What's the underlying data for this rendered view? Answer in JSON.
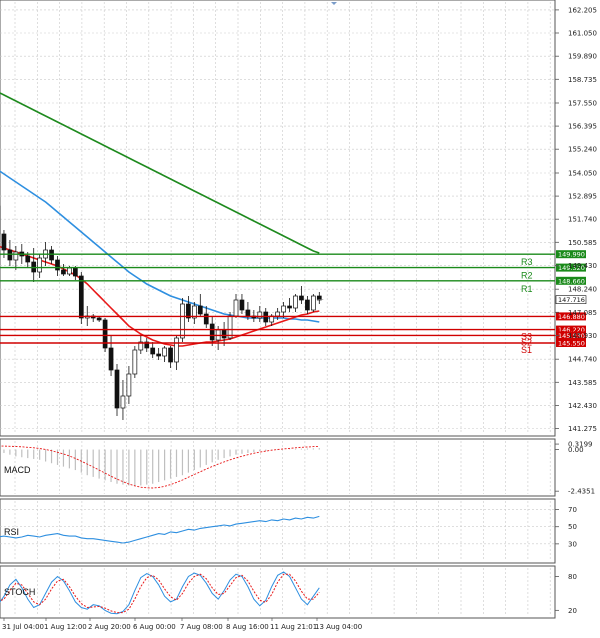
{
  "chart_data": [
    {
      "type": "candlestick",
      "panel": "price",
      "ylim": [
        141.0,
        162.6
      ],
      "y_ticks": [
        "162.205",
        "161.050",
        "159.890",
        "158.735",
        "157.550",
        "156.395",
        "155.240",
        "154.050",
        "152.895",
        "151.740",
        "150.585",
        "149.430",
        "148.240",
        "147.085",
        "145.930",
        "144.740",
        "143.585",
        "142.430",
        "141.275"
      ],
      "y_tick_values": [
        162.205,
        161.05,
        159.89,
        158.735,
        157.55,
        156.395,
        155.24,
        154.05,
        152.895,
        151.74,
        150.585,
        149.43,
        148.24,
        147.085,
        145.93,
        144.74,
        143.585,
        142.43,
        141.275
      ],
      "x_ticks": [
        "31 Jul 04:00",
        "1 Aug 12:00",
        "2 Aug 20:00",
        "6 Aug 00:00",
        "7 Aug 08:00",
        "8 Aug 16:00",
        "11 Aug 21:01",
        "13 Aug 04:00"
      ],
      "candles": [
        [
          152.4,
          152.8,
          150.6,
          151.0
        ],
        [
          151.0,
          151.2,
          149.8,
          150.2
        ],
        [
          150.2,
          150.7,
          149.4,
          149.7
        ],
        [
          149.7,
          150.4,
          149.2,
          150.1
        ],
        [
          150.1,
          150.5,
          149.5,
          149.9
        ],
        [
          149.9,
          150.1,
          149.3,
          149.6
        ],
        [
          149.6,
          150.3,
          148.6,
          149.1
        ],
        [
          149.1,
          150.0,
          148.8,
          149.8
        ],
        [
          149.8,
          150.6,
          149.4,
          150.2
        ],
        [
          150.2,
          150.4,
          149.5,
          149.7
        ],
        [
          149.7,
          149.9,
          148.9,
          149.2
        ],
        [
          149.2,
          149.5,
          148.9,
          149.0
        ],
        [
          149.0,
          149.4,
          148.9,
          149.3
        ],
        [
          149.3,
          149.4,
          148.7,
          148.9
        ],
        [
          148.9,
          149.1,
          146.5,
          146.8
        ],
        [
          146.8,
          147.4,
          146.4,
          146.9
        ],
        [
          146.9,
          147.0,
          146.6,
          146.8
        ],
        [
          146.8,
          146.9,
          146.6,
          146.7
        ],
        [
          146.7,
          146.8,
          145.1,
          145.3
        ],
        [
          145.3,
          145.9,
          143.9,
          144.2
        ],
        [
          144.2,
          144.5,
          141.9,
          142.3
        ],
        [
          142.3,
          143.7,
          141.7,
          142.9
        ],
        [
          142.9,
          144.4,
          142.5,
          144.0
        ],
        [
          144.0,
          145.4,
          143.8,
          145.2
        ],
        [
          145.2,
          145.9,
          145.0,
          145.6
        ],
        [
          145.6,
          145.8,
          145.1,
          145.3
        ],
        [
          145.3,
          145.6,
          144.8,
          145.0
        ],
        [
          145.0,
          145.3,
          144.7,
          144.9
        ],
        [
          144.9,
          145.4,
          144.6,
          145.3
        ],
        [
          145.3,
          145.4,
          144.3,
          144.6
        ],
        [
          144.6,
          145.9,
          144.2,
          145.8
        ],
        [
          145.8,
          147.8,
          145.6,
          147.5
        ],
        [
          147.5,
          147.9,
          146.6,
          146.8
        ],
        [
          146.8,
          147.6,
          146.5,
          147.4
        ],
        [
          147.4,
          148.0,
          146.9,
          147.0
        ],
        [
          147.0,
          147.4,
          146.3,
          146.5
        ],
        [
          146.5,
          146.9,
          145.4,
          145.7
        ],
        [
          145.7,
          146.4,
          145.2,
          146.2
        ],
        [
          146.2,
          146.6,
          145.4,
          145.8
        ],
        [
          145.8,
          147.1,
          145.7,
          146.9
        ],
        [
          146.9,
          148.0,
          146.8,
          147.7
        ],
        [
          147.7,
          148.0,
          147.0,
          147.2
        ],
        [
          147.2,
          147.6,
          146.7,
          146.9
        ],
        [
          146.9,
          147.2,
          146.6,
          146.8
        ],
        [
          146.8,
          147.4,
          146.6,
          147.1
        ],
        [
          147.1,
          147.3,
          146.4,
          146.6
        ],
        [
          146.6,
          147.0,
          146.4,
          146.9
        ],
        [
          146.9,
          147.3,
          146.7,
          147.1
        ],
        [
          147.1,
          147.6,
          146.8,
          147.4
        ],
        [
          147.4,
          147.8,
          147.1,
          147.3
        ],
        [
          147.3,
          148.0,
          147.1,
          147.9
        ],
        [
          147.9,
          148.4,
          147.5,
          147.7
        ],
        [
          147.7,
          147.9,
          147.0,
          147.2
        ],
        [
          147.2,
          148.0,
          147.1,
          147.9
        ],
        [
          147.9,
          148.1,
          147.5,
          147.7
        ]
      ],
      "ma_red": [
        150.4,
        150.3,
        150.2,
        150.1,
        150.0,
        149.9,
        149.8,
        149.7,
        149.6,
        149.5,
        149.4,
        149.25,
        149.1,
        148.95,
        148.75,
        148.5,
        148.2,
        147.9,
        147.6,
        147.3,
        147.0,
        146.7,
        146.4,
        146.2,
        146.0,
        145.85,
        145.7,
        145.6,
        145.5,
        145.45,
        145.4,
        145.4,
        145.45,
        145.5,
        145.55,
        145.6,
        145.6,
        145.65,
        145.7,
        145.75,
        145.85,
        145.95,
        146.05,
        146.15,
        146.25,
        146.35,
        146.45,
        146.55,
        146.65,
        146.75,
        146.85,
        146.95,
        147.0,
        147.1,
        147.15
      ],
      "ma_blue": [
        154.2,
        154.0,
        153.8,
        153.6,
        153.4,
        153.2,
        153.0,
        152.8,
        152.6,
        152.35,
        152.1,
        151.85,
        151.6,
        151.35,
        151.1,
        150.85,
        150.6,
        150.35,
        150.1,
        149.85,
        149.6,
        149.35,
        149.1,
        148.9,
        148.7,
        148.5,
        148.35,
        148.2,
        148.05,
        147.9,
        147.8,
        147.7,
        147.6,
        147.5,
        147.4,
        147.3,
        147.2,
        147.1,
        147.0,
        146.95,
        146.9,
        146.85,
        146.8,
        146.8,
        146.8,
        146.8,
        146.8,
        146.8,
        146.8,
        146.75,
        146.75,
        146.7,
        146.7,
        146.65,
        146.6
      ],
      "ma_green": [
        158.1,
        157.95,
        157.8,
        157.65,
        157.5,
        157.35,
        157.2,
        157.05,
        156.9,
        156.75,
        156.6,
        156.45,
        156.3,
        156.15,
        156.0,
        155.85,
        155.7,
        155.55,
        155.4,
        155.25,
        155.1,
        154.95,
        154.8,
        154.65,
        154.5,
        154.35,
        154.2,
        154.05,
        153.9,
        153.75,
        153.6,
        153.45,
        153.3,
        153.15,
        153.0,
        152.85,
        152.7,
        152.55,
        152.4,
        152.25,
        152.1,
        151.95,
        151.8,
        151.65,
        151.5,
        151.35,
        151.2,
        151.05,
        150.9,
        150.75,
        150.6,
        150.45,
        150.3,
        150.15,
        150.05
      ],
      "levels": [
        {
          "name": "R3",
          "value": 149.99,
          "label": "149.990",
          "color": "#1a8a1a"
        },
        {
          "name": "R2",
          "value": 149.32,
          "label": "149.320",
          "color": "#1a8a1a"
        },
        {
          "name": "R1",
          "value": 148.66,
          "label": "148.660",
          "color": "#1a8a1a"
        },
        {
          "name": "",
          "value": 146.88,
          "label": "146.880",
          "color": "#d00000"
        },
        {
          "name": "S3",
          "value": 146.22,
          "label": "146.220",
          "color": "#d00000"
        },
        {
          "name": "S2",
          "value": 145.93,
          "label": "145.930",
          "color": "#d00000"
        },
        {
          "name": "S1",
          "value": 145.55,
          "label": "145.550",
          "color": "#d00000"
        }
      ],
      "current_price": {
        "value": 147.716,
        "label": "147.716"
      },
      "colors": {
        "ma_red": "#e81818",
        "ma_blue": "#2e8fe0",
        "ma_green": "#1e8a1e",
        "candle_up": "#1f8f1f",
        "candle_down": "#d01010",
        "grid": "#c9c9c9"
      }
    },
    {
      "type": "macd",
      "panel": "MACD",
      "label": "MACD",
      "ylim": [
        -2.6,
        0.5
      ],
      "y_ticks": [
        "0.3199",
        "0.00",
        "-2.4351"
      ],
      "y_tick_values": [
        0.3199,
        0.0,
        -2.4351
      ],
      "signal": [
        0.2,
        0.2,
        0.19,
        0.18,
        0.16,
        0.13,
        0.1,
        0.06,
        0.0,
        -0.07,
        -0.16,
        -0.26,
        -0.38,
        -0.52,
        -0.68,
        -0.85,
        -1.02,
        -1.2,
        -1.38,
        -1.56,
        -1.73,
        -1.88,
        -2.02,
        -2.12,
        -2.2,
        -2.24,
        -2.25,
        -2.22,
        -2.15,
        -2.05,
        -1.92,
        -1.78,
        -1.62,
        -1.46,
        -1.3,
        -1.14,
        -0.99,
        -0.85,
        -0.72,
        -0.6,
        -0.49,
        -0.39,
        -0.3,
        -0.22,
        -0.15,
        -0.09,
        -0.04,
        0.0,
        0.04,
        0.07,
        0.1,
        0.13,
        0.15,
        0.17,
        0.18
      ],
      "histogram": [
        -0.1,
        -0.2,
        -0.3,
        -0.4,
        -0.45,
        -0.5,
        -0.55,
        -0.6,
        -0.7,
        -0.8,
        -0.9,
        -1.0,
        -1.1,
        -1.2,
        -1.35,
        -1.5,
        -1.6,
        -1.7,
        -1.8,
        -1.9,
        -2.0,
        -2.05,
        -2.1,
        -2.15,
        -2.1,
        -2.05,
        -2.0,
        -1.9,
        -1.8,
        -1.7,
        -1.6,
        -1.5,
        -1.35,
        -1.2,
        -1.05,
        -0.9,
        -0.75,
        -0.6,
        -0.5,
        -0.4,
        -0.3,
        -0.25,
        -0.2,
        -0.15,
        -0.1,
        -0.08,
        -0.05,
        -0.03,
        0.0,
        0.02,
        0.04,
        0.05,
        0.06,
        0.07,
        0.08
      ],
      "colors": {
        "signal": "#e81818",
        "histogram": "#bfbfbf"
      }
    },
    {
      "type": "line",
      "panel": "RSI",
      "label": "RSI",
      "ylim": [
        10,
        80
      ],
      "y_ticks": [
        "70",
        "50",
        "30"
      ],
      "y_tick_values": [
        70,
        50,
        30
      ],
      "values": [
        38,
        39,
        38,
        37,
        38,
        40,
        39,
        38,
        40,
        41,
        42,
        40,
        39,
        39,
        37,
        36,
        36,
        35,
        34,
        33,
        32,
        31,
        32,
        34,
        36,
        38,
        40,
        42,
        41,
        44,
        43,
        45,
        47,
        46,
        48,
        49,
        50,
        51,
        52,
        51,
        53,
        54,
        55,
        56,
        57,
        56,
        58,
        57,
        59,
        58,
        60,
        59,
        61,
        60,
        62
      ],
      "colors": {
        "line": "#2e8fe0"
      }
    },
    {
      "type": "line",
      "panel": "STOCH",
      "label": "STOCH",
      "ylim": [
        10,
        95
      ],
      "y_ticks": [
        "80",
        "20"
      ],
      "y_tick_values": [
        80,
        20
      ],
      "series": [
        {
          "values": [
            30,
            45,
            65,
            75,
            60,
            40,
            25,
            30,
            50,
            70,
            80,
            72,
            55,
            35,
            25,
            22,
            30,
            28,
            20,
            15,
            14,
            18,
            30,
            55,
            78,
            85,
            80,
            65,
            45,
            35,
            40,
            62,
            80,
            86,
            82,
            68,
            50,
            40,
            55,
            74,
            84,
            80,
            62,
            40,
            28,
            38,
            62,
            82,
            88,
            80,
            60,
            40,
            30,
            45,
            60
          ],
          "color": "#2e8fe0",
          "style": "solid"
        },
        {
          "values": [
            35,
            40,
            55,
            68,
            65,
            50,
            35,
            30,
            40,
            58,
            72,
            75,
            62,
            45,
            32,
            25,
            26,
            27,
            24,
            19,
            16,
            16,
            22,
            40,
            62,
            78,
            82,
            74,
            58,
            44,
            38,
            50,
            68,
            80,
            84,
            76,
            60,
            48,
            50,
            64,
            78,
            82,
            72,
            54,
            38,
            34,
            48,
            70,
            84,
            84,
            72,
            54,
            40,
            40,
            52
          ],
          "color": "#e81818",
          "style": "dashed"
        }
      ]
    }
  ]
}
